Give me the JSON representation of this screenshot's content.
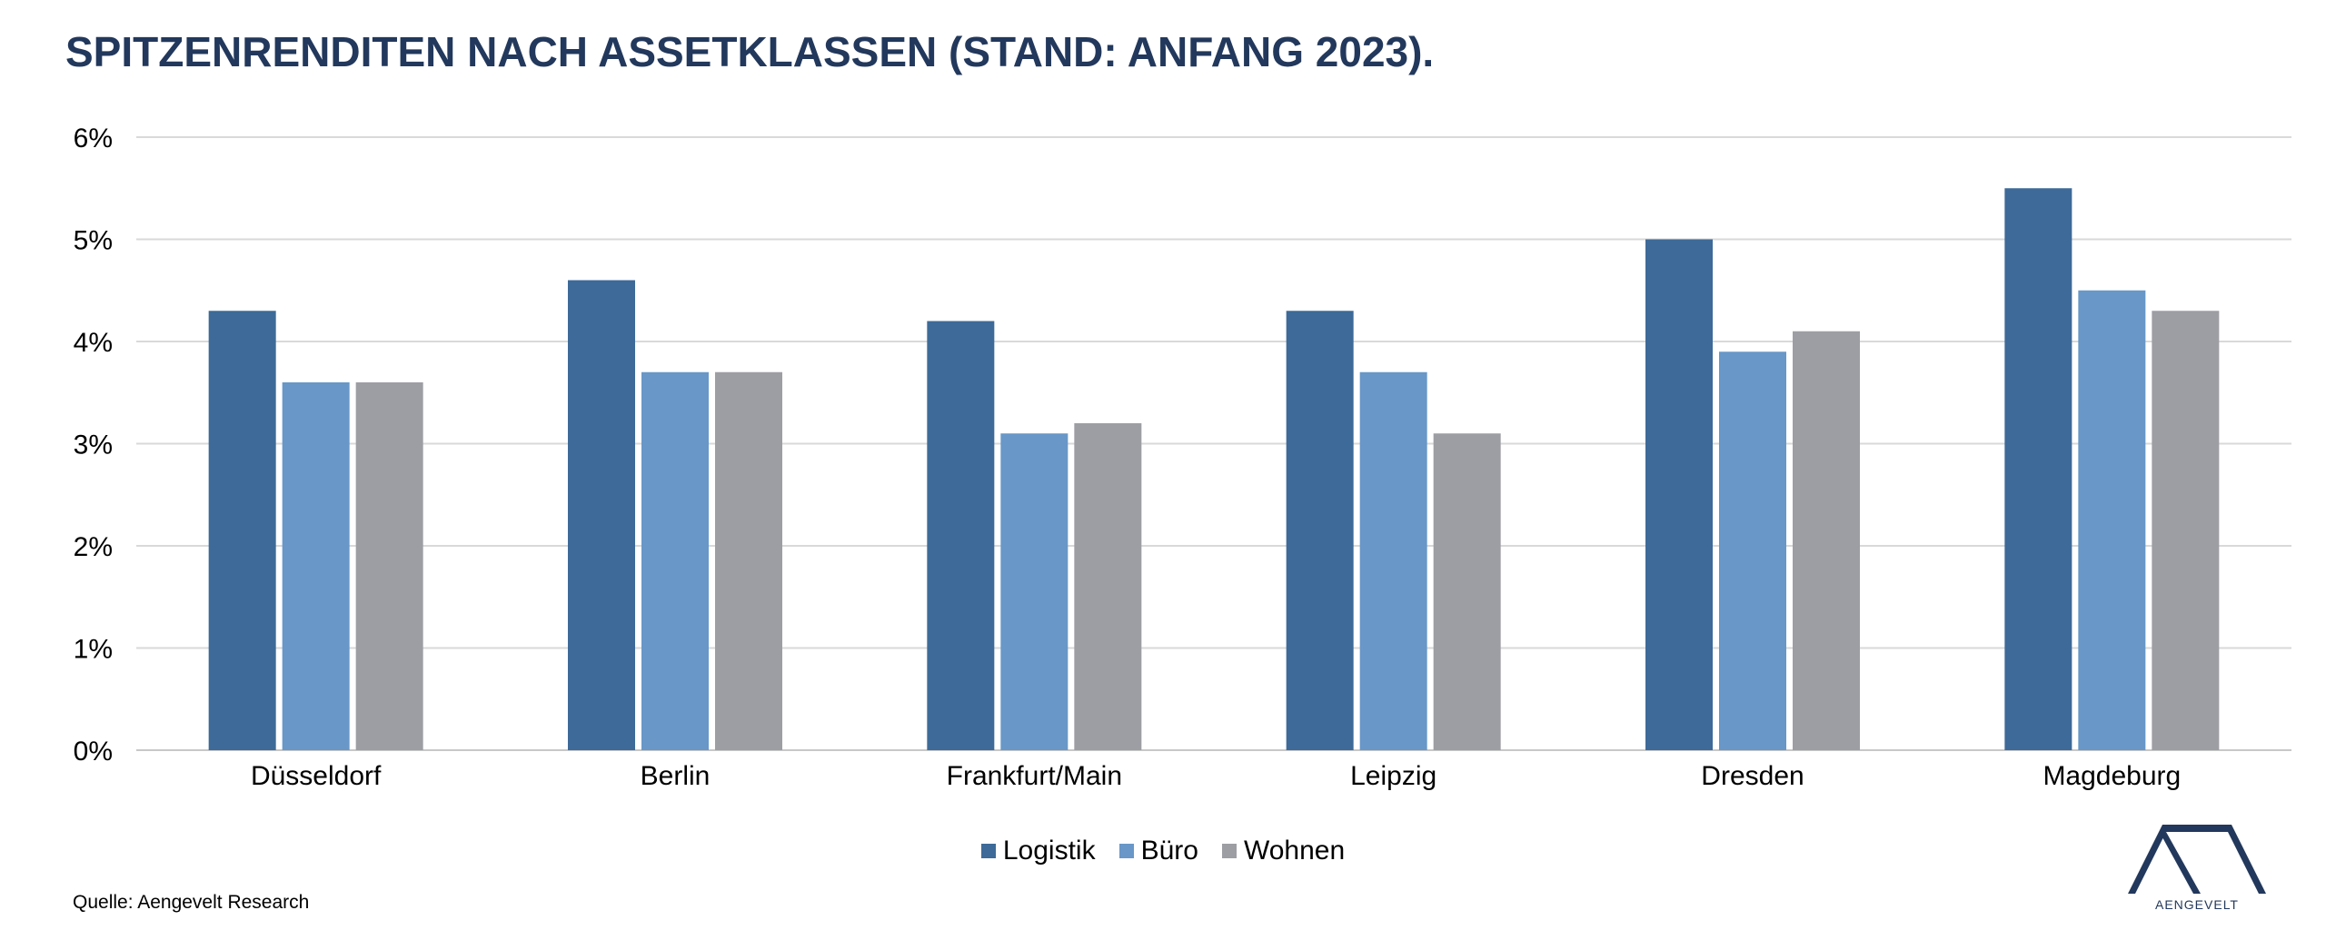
{
  "title": "SPITZENRENDITEN NACH ASSETKLASSEN (STAND: ANFANG 2023).",
  "source": "Quelle: Aengevelt Research",
  "logo": {
    "text": "AENGEVELT",
    "color": "#22385c"
  },
  "chart_data": {
    "type": "bar",
    "title": "SPITZENRENDITEN NACH ASSETKLASSEN (STAND: ANFANG 2023).",
    "xlabel": "",
    "ylabel": "",
    "categories": [
      "Düsseldorf",
      "Berlin",
      "Frankfurt/Main",
      "Leipzig",
      "Dresden",
      "Magdeburg"
    ],
    "series": [
      {
        "name": "Logistik",
        "color": "#3d6a98",
        "values": [
          4.3,
          4.6,
          4.2,
          4.3,
          5.0,
          5.5
        ]
      },
      {
        "name": "Büro",
        "color": "#6897c8",
        "values": [
          3.6,
          3.7,
          3.1,
          3.7,
          3.9,
          4.5
        ]
      },
      {
        "name": "Wohnen",
        "color": "#9d9ea3",
        "values": [
          3.6,
          3.7,
          3.2,
          3.1,
          4.1,
          4.3
        ]
      }
    ],
    "ylim": [
      0,
      6
    ],
    "yticks": [
      "0%",
      "1%",
      "2%",
      "3%",
      "4%",
      "5%",
      "6%"
    ],
    "grid": true,
    "legend_position": "bottom"
  }
}
